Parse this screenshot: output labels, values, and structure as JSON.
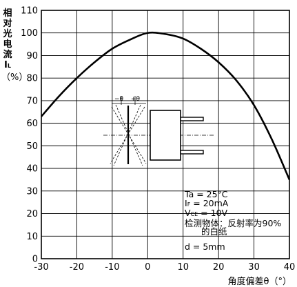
{
  "chart_data": {
    "type": "line",
    "title": "",
    "xlabel": "角度偏差θ（°）",
    "ylabel": [
      "相",
      "对",
      "光",
      "电",
      "流",
      "I",
      "L",
      "（%）"
    ],
    "x_ticks": [
      "-30",
      "-20",
      "-10",
      "0",
      "10",
      "20",
      "30",
      "40"
    ],
    "y_ticks": [
      "0",
      "10",
      "20",
      "30",
      "40",
      "50",
      "60",
      "70",
      "80",
      "90",
      "100",
      "110"
    ],
    "xlim": [
      -30,
      40
    ],
    "ylim": [
      0,
      110
    ],
    "grid": true,
    "series": [
      {
        "x": [
          -30,
          -25,
          -20,
          -15,
          -10,
          -5,
          0,
          5,
          10,
          15,
          20,
          25,
          30,
          35,
          40
        ],
        "y": [
          63,
          72,
          80,
          87,
          93,
          97,
          100,
          99.5,
          97.5,
          93,
          87,
          79,
          68,
          53,
          35
        ]
      }
    ],
    "annotations": {
      "ta": "Ta = 25°C",
      "if_sym": "I",
      "if_sub": "F",
      "if_val": " = 20mA",
      "vce_sym": "V",
      "vce_sub": "CE",
      "vce_val": " = 10V",
      "obj1": "检测物体：反射率为90%",
      "obj2": "的白纸",
      "d": "d = 5mm"
    },
    "inset": {
      "minus_theta": "−θ",
      "plus_theta": "+θ"
    }
  }
}
